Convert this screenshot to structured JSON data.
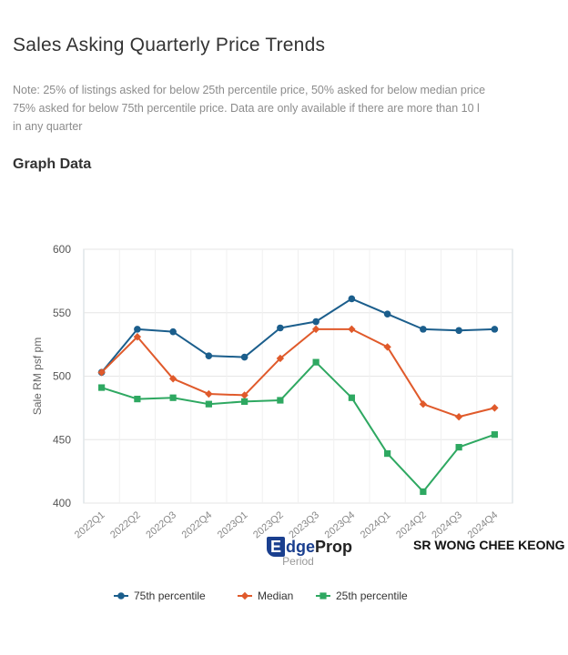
{
  "page": {
    "title": "Sales Asking Quarterly Price Trends",
    "note_lines": [
      "Note: 25% of listings asked for below 25th percentile price, 50% asked for below median price",
      "75% asked for below 75th percentile price. Data are only available if there are more than 10 l",
      "in any quarter"
    ],
    "graph_heading": "Graph Data"
  },
  "overlay": {
    "watermark_badge": "E",
    "watermark_text_a": "dge",
    "watermark_text_b": "Prop",
    "author": "SR WONG CHEE KEONG"
  },
  "chart_data": {
    "type": "line",
    "title": "",
    "xlabel": "Period",
    "ylabel": "Sale RM psf pm",
    "ylim": [
      400,
      600
    ],
    "yticks": [
      400,
      450,
      500,
      550,
      600
    ],
    "grid": true,
    "legend": "bottom",
    "categories": [
      "2022Q1",
      "2022Q2",
      "2022Q3",
      "2022Q4",
      "2023Q1",
      "2023Q2",
      "2023Q3",
      "2023Q4",
      "2024Q1",
      "2024Q2",
      "2024Q3",
      "2024Q4"
    ],
    "series": [
      {
        "name": "75th percentile",
        "color": "#1b5e8c",
        "marker": "circle",
        "values": [
          503,
          537,
          535,
          516,
          515,
          538,
          543,
          561,
          549,
          537,
          536,
          537
        ]
      },
      {
        "name": "Median",
        "color": "#e05a2b",
        "marker": "diamond",
        "values": [
          503,
          531,
          498,
          486,
          485,
          514,
          537,
          537,
          523,
          478,
          468,
          475
        ]
      },
      {
        "name": "25th percentile",
        "color": "#2ea861",
        "marker": "square",
        "values": [
          491,
          482,
          483,
          478,
          480,
          481,
          511,
          483,
          439,
          409,
          444,
          454
        ]
      }
    ]
  }
}
